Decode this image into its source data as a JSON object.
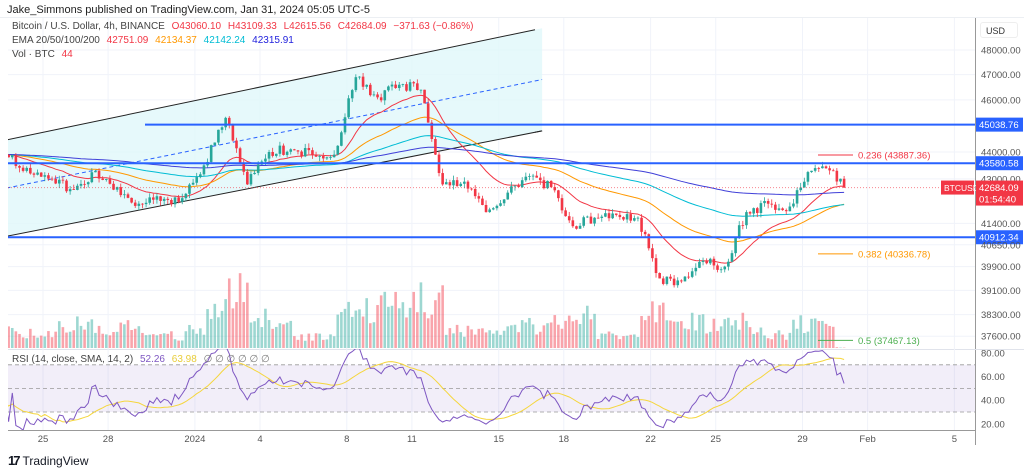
{
  "header": {
    "published": "Jake_Simmons published on TradingView.com, Jan 31, 2024 05:05 UTC-5"
  },
  "legend": {
    "symbol": "Bitcoin / U.S. Dollar, 4h, BINANCE",
    "o": "O43060.10",
    "h": "H43109.33",
    "l": "L42615.56",
    "c": "C42684.09",
    "chg": "−371.63 (−0.86%)",
    "ema_label": "EMA 20/50/100/200",
    "ema20": "42751.09",
    "ema50": "42134.37",
    "ema100": "42142.24",
    "ema200": "42315.91",
    "vol_label": "Vol · BTC",
    "vol": "44",
    "rsi_label": "RSI (14, close, SMA, 14, 2)",
    "rsi": "52.26",
    "rsi_sma": "63.98",
    "rsi_na": "∅ ∅ ∅ ∅ ∅ ∅"
  },
  "brand": {
    "name": "TradingView",
    "icon": "tradingview-logo"
  },
  "colors": {
    "up": "#26a69a",
    "down": "#f23645",
    "ema20": "#f23645",
    "ema50": "#ff9800",
    "ema100": "#00bcd4",
    "ema200": "#3f3fd8",
    "level": "#2962ff",
    "rsi": "#7e57c2",
    "rsi_sma": "#f5d63d",
    "channel": "#e0f7fa"
  },
  "chart_data": {
    "type": "candlestick",
    "symbol": "BTCUSD",
    "interval": "4h",
    "yscale": "log",
    "ylim": [
      37300,
      48700
    ],
    "price_ticks": [
      "48000.00",
      "47000.00",
      "46000.00",
      "44000.00",
      "43000.00",
      "41400.00",
      "40650.00",
      "39900.00",
      "39100.00",
      "38300.00",
      "37600.00"
    ],
    "price_tick_values": [
      48000,
      47000,
      46000,
      44000,
      43000,
      41400,
      40650,
      39900,
      39100,
      38300,
      37600
    ],
    "x_ticks": [
      {
        "label": "25",
        "day": 0
      },
      {
        "label": "28",
        "day": 3
      },
      {
        "label": "2024",
        "day": 7
      },
      {
        "label": "4",
        "day": 10
      },
      {
        "label": "8",
        "day": 14
      },
      {
        "label": "11",
        "day": 17
      },
      {
        "label": "15",
        "day": 21
      },
      {
        "label": "18",
        "day": 24
      },
      {
        "label": "22",
        "day": 28
      },
      {
        "label": "25",
        "day": 31
      },
      {
        "label": "29",
        "day": 35
      },
      {
        "label": "Feb",
        "day": 38
      },
      {
        "label": "5",
        "day": 42
      }
    ],
    "daily": {
      "dates": [
        "Dec 23",
        "Dec 24",
        "Dec 25",
        "Dec 26",
        "Dec 27",
        "Dec 28",
        "Dec 29",
        "Dec 30",
        "Dec 31",
        "Jan 1",
        "Jan 2",
        "Jan 3",
        "Jan 4",
        "Jan 5",
        "Jan 6",
        "Jan 7",
        "Jan 8",
        "Jan 9",
        "Jan 10",
        "Jan 11",
        "Jan 12",
        "Jan 13",
        "Jan 14",
        "Jan 15",
        "Jan 16",
        "Jan 17",
        "Jan 18",
        "Jan 19",
        "Jan 20",
        "Jan 21",
        "Jan 22",
        "Jan 23",
        "Jan 24",
        "Jan 25",
        "Jan 26",
        "Jan 27",
        "Jan 28",
        "Jan 29",
        "Jan 30",
        "Jan 31"
      ],
      "close": [
        43800,
        43200,
        43000,
        42600,
        43300,
        42700,
        42100,
        42200,
        42300,
        43500,
        45300,
        42800,
        44000,
        44100,
        43900,
        43900,
        46900,
        46100,
        46600,
        46400,
        42800,
        42900,
        41800,
        42500,
        43100,
        42700,
        41300,
        41600,
        41700,
        41600,
        39500,
        39400,
        40100,
        39900,
        41800,
        42100,
        42000,
        43300,
        43300,
        42684.09
      ],
      "volume": [
        1200,
        1100,
        1000,
        1500,
        1700,
        1300,
        1600,
        1000,
        900,
        1600,
        2800,
        4200,
        2200,
        1800,
        900,
        1000,
        2900,
        3100,
        3400,
        3800,
        3600,
        1400,
        1200,
        1500,
        1700,
        1500,
        2400,
        2300,
        900,
        800,
        2600,
        2500,
        1900,
        1600,
        2100,
        1200,
        1000,
        1800,
        1700,
        44
      ]
    },
    "ema_periods": [
      20,
      50,
      100,
      200
    ],
    "levels": [
      {
        "price": 45038.76,
        "label": "45038.76"
      },
      {
        "price": 43580.58,
        "label": "43580.58"
      },
      {
        "price": 40912.34,
        "label": "40912.34"
      }
    ],
    "fib": [
      {
        "ratio": "0.236",
        "label": "0.236 (43887.36)",
        "price": 43887.36,
        "color": "#f23645"
      },
      {
        "ratio": "0.382",
        "label": "0.382 (40336.78)",
        "price": 40336.78,
        "color": "#ff9800"
      },
      {
        "ratio": "0.5",
        "label": "0.5 (37467.13)",
        "price": 37467.13,
        "color": "#4caf50"
      }
    ],
    "last_price": {
      "symbol": "BTCUSD",
      "price": "42684.09",
      "countdown": "01:54:40"
    },
    "channel": {
      "upper": [
        [
          -2,
          44400
        ],
        [
          23,
          48900
        ]
      ],
      "lower": [
        [
          -2,
          40900
        ],
        [
          23,
          44800
        ]
      ]
    },
    "rsi": {
      "ticks": [
        "80.00",
        "60.00",
        "40.00",
        "20.00"
      ],
      "tick_values": [
        80,
        60,
        40,
        20
      ],
      "bands": [
        70,
        50,
        30
      ],
      "ylim": [
        17,
        83
      ]
    },
    "axis_label": "USD"
  }
}
